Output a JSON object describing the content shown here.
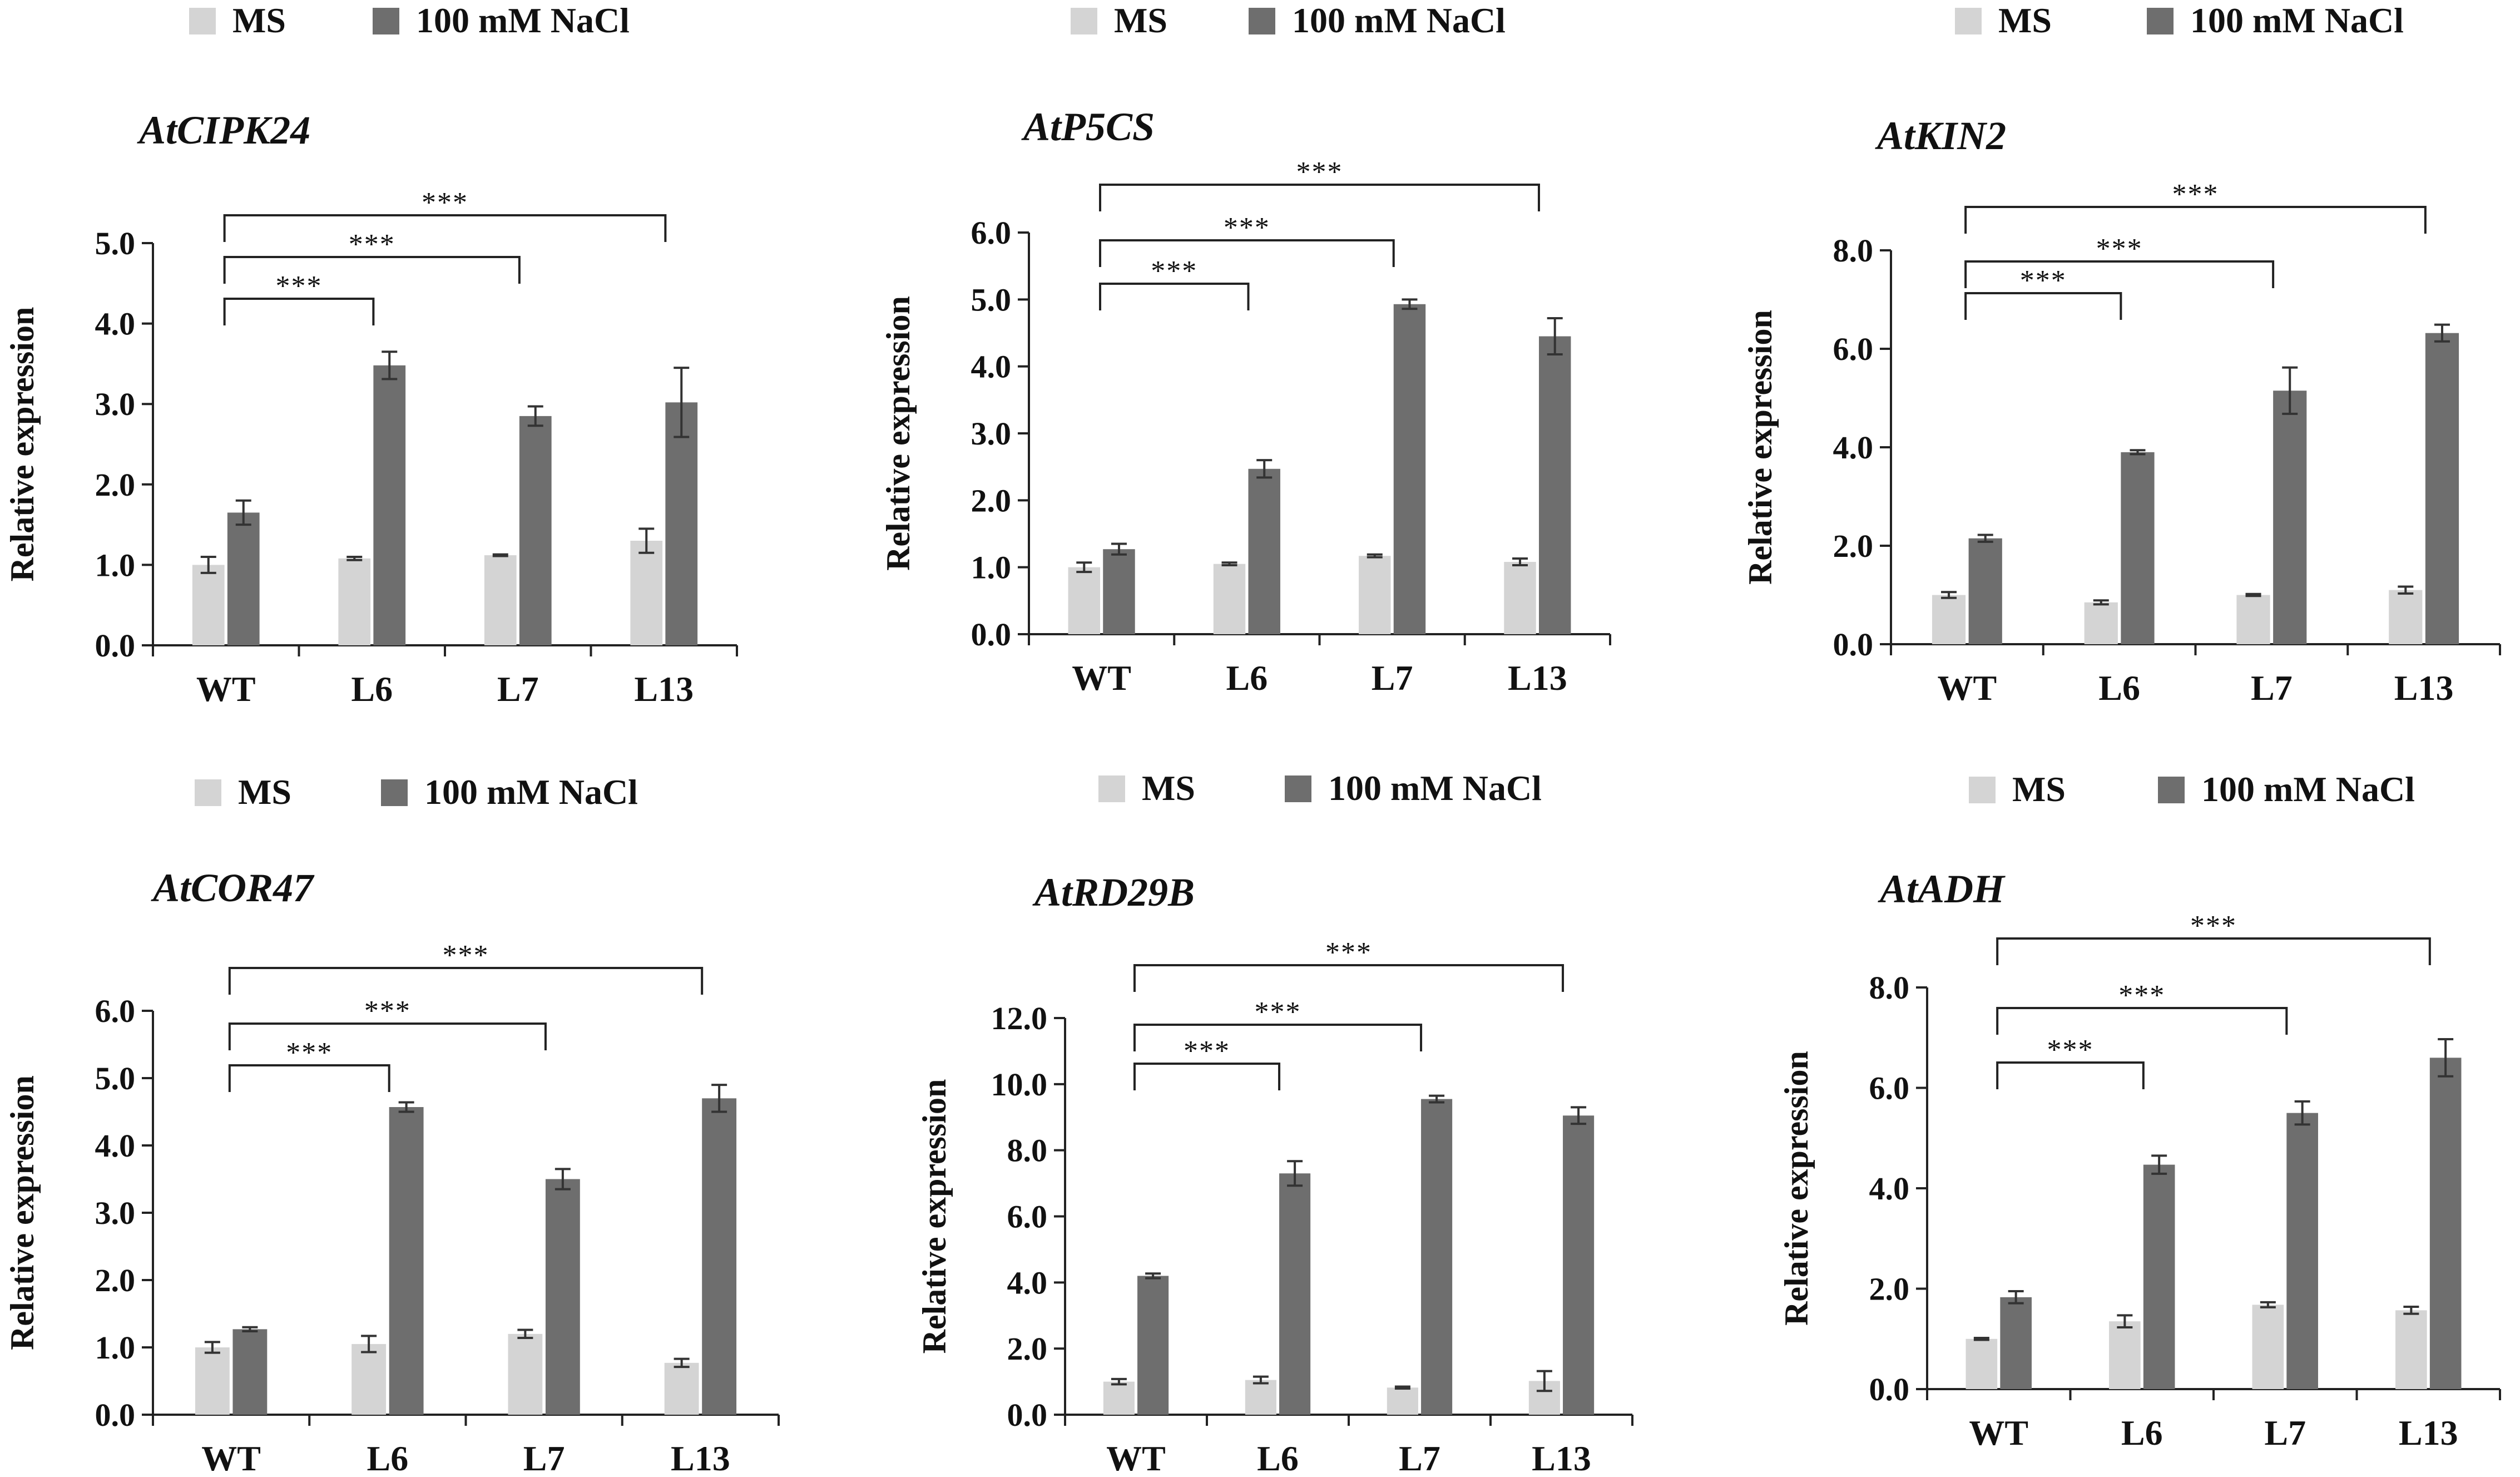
{
  "legend": {
    "series": [
      "MS",
      "100 mM NaCl"
    ]
  },
  "colors": {
    "ms": "#d4d4d4",
    "nacl": "#6e6e6e",
    "axis": "#222222",
    "text": "#111111"
  },
  "chart_data": [
    {
      "type": "bar",
      "title": "AtCIPK24",
      "ylabel": "Relative expression",
      "categories": [
        "WT",
        "L6",
        "L7",
        "L13"
      ],
      "ylim": [
        0,
        5
      ],
      "yticks": [
        "0.0",
        "1.0",
        "2.0",
        "3.0",
        "4.0",
        "5.0"
      ],
      "series": [
        {
          "name": "MS",
          "values": [
            1.0,
            1.08,
            1.12,
            1.3
          ],
          "errors": [
            0.1,
            0.02,
            0.01,
            0.15
          ]
        },
        {
          "name": "100 mM NaCl",
          "values": [
            1.65,
            3.48,
            2.85,
            3.02
          ],
          "errors": [
            0.15,
            0.17,
            0.12,
            0.43
          ]
        }
      ],
      "significance": [
        {
          "from": "WT",
          "to": "L6",
          "label": "***"
        },
        {
          "from": "WT",
          "to": "L7",
          "label": "***"
        },
        {
          "from": "WT",
          "to": "L13",
          "label": "***"
        }
      ]
    },
    {
      "type": "bar",
      "title": "AtP5CS",
      "ylabel": "Relative expression",
      "categories": [
        "WT",
        "L6",
        "L7",
        "L13"
      ],
      "ylim": [
        0,
        6
      ],
      "yticks": [
        "0.0",
        "1.0",
        "2.0",
        "3.0",
        "4.0",
        "5.0",
        "6.0"
      ],
      "series": [
        {
          "name": "MS",
          "values": [
            1.0,
            1.05,
            1.17,
            1.08
          ],
          "errors": [
            0.07,
            0.02,
            0.02,
            0.05
          ]
        },
        {
          "name": "100 mM NaCl",
          "values": [
            1.27,
            2.47,
            4.93,
            4.45
          ],
          "errors": [
            0.08,
            0.13,
            0.07,
            0.27
          ]
        }
      ],
      "significance": [
        {
          "from": "WT",
          "to": "L6",
          "label": "***"
        },
        {
          "from": "WT",
          "to": "L7",
          "label": "***"
        },
        {
          "from": "WT",
          "to": "L13",
          "label": "***"
        }
      ]
    },
    {
      "type": "bar",
      "title": "AtKIN2",
      "ylabel": "Relative expression",
      "categories": [
        "WT",
        "L6",
        "L7",
        "L13"
      ],
      "ylim": [
        0,
        8
      ],
      "yticks": [
        "0.0",
        "2.0",
        "4.0",
        "6.0",
        "8.0"
      ],
      "series": [
        {
          "name": "MS",
          "values": [
            1.0,
            0.85,
            1.0,
            1.1
          ],
          "errors": [
            0.06,
            0.04,
            0.02,
            0.07
          ]
        },
        {
          "name": "100 mM NaCl",
          "values": [
            2.15,
            3.9,
            5.15,
            6.32
          ],
          "errors": [
            0.07,
            0.04,
            0.47,
            0.17
          ]
        }
      ],
      "significance": [
        {
          "from": "WT",
          "to": "L6",
          "label": "***"
        },
        {
          "from": "WT",
          "to": "L7",
          "label": "***"
        },
        {
          "from": "WT",
          "to": "L13",
          "label": "***"
        }
      ]
    },
    {
      "type": "bar",
      "title": "AtCOR47",
      "ylabel": "Relative expression",
      "categories": [
        "WT",
        "L6",
        "L7",
        "L13"
      ],
      "ylim": [
        0,
        6
      ],
      "yticks": [
        "0.0",
        "1.0",
        "2.0",
        "3.0",
        "4.0",
        "5.0",
        "6.0"
      ],
      "series": [
        {
          "name": "MS",
          "values": [
            1.0,
            1.05,
            1.2,
            0.77
          ],
          "errors": [
            0.08,
            0.12,
            0.06,
            0.06
          ]
        },
        {
          "name": "100 mM NaCl",
          "values": [
            1.27,
            4.57,
            3.5,
            4.7
          ],
          "errors": [
            0.03,
            0.07,
            0.15,
            0.2
          ]
        }
      ],
      "significance": [
        {
          "from": "WT",
          "to": "L6",
          "label": "***"
        },
        {
          "from": "WT",
          "to": "L7",
          "label": "***"
        },
        {
          "from": "WT",
          "to": "L13",
          "label": "***"
        }
      ]
    },
    {
      "type": "bar",
      "title": "AtRD29B",
      "ylabel": "Relative expression",
      "categories": [
        "WT",
        "L6",
        "L7",
        "L13"
      ],
      "ylim": [
        0,
        12
      ],
      "yticks": [
        "0.0",
        "2.0",
        "4.0",
        "6.0",
        "8.0",
        "10.0",
        "12.0"
      ],
      "series": [
        {
          "name": "MS",
          "values": [
            1.0,
            1.05,
            0.82,
            1.02
          ],
          "errors": [
            0.08,
            0.1,
            0.03,
            0.3
          ]
        },
        {
          "name": "100 mM NaCl",
          "values": [
            4.2,
            7.3,
            9.55,
            9.05
          ],
          "errors": [
            0.07,
            0.37,
            0.1,
            0.25
          ]
        }
      ],
      "significance": [
        {
          "from": "WT",
          "to": "L6",
          "label": "***"
        },
        {
          "from": "WT",
          "to": "L7",
          "label": "***"
        },
        {
          "from": "WT",
          "to": "L13",
          "label": "***"
        }
      ]
    },
    {
      "type": "bar",
      "title": "AtADH",
      "ylabel": "Relative expression",
      "categories": [
        "WT",
        "L6",
        "L7",
        "L13"
      ],
      "ylim": [
        0,
        8
      ],
      "yticks": [
        "0.0",
        "2.0",
        "4.0",
        "6.0",
        "8.0"
      ],
      "series": [
        {
          "name": "MS",
          "values": [
            1.0,
            1.35,
            1.68,
            1.57
          ],
          "errors": [
            0.02,
            0.12,
            0.05,
            0.07
          ]
        },
        {
          "name": "100 mM NaCl",
          "values": [
            1.83,
            4.47,
            5.5,
            6.6
          ],
          "errors": [
            0.12,
            0.18,
            0.23,
            0.37
          ]
        }
      ],
      "significance": [
        {
          "from": "WT",
          "to": "L6",
          "label": "***"
        },
        {
          "from": "WT",
          "to": "L7",
          "label": "***"
        },
        {
          "from": "WT",
          "to": "L13",
          "label": "***"
        }
      ]
    }
  ]
}
